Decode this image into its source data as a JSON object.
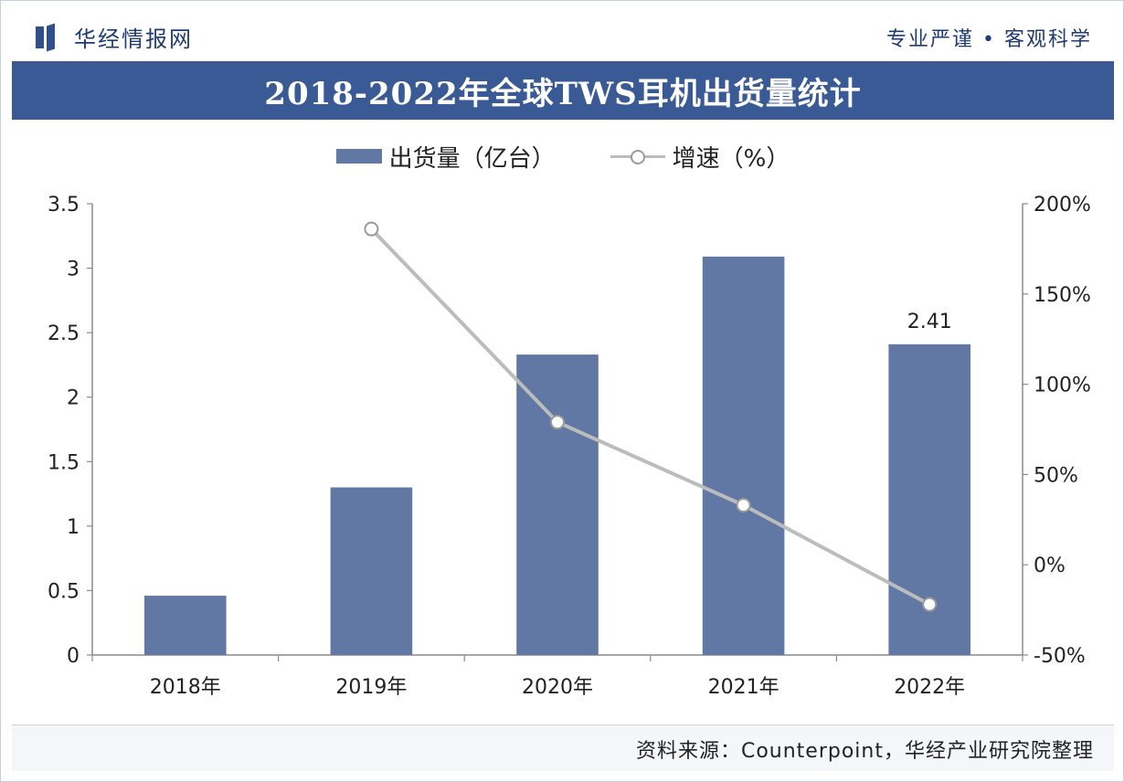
{
  "header": {
    "brand": "华经情报网",
    "slogan": "专业严谨 • 客观科学"
  },
  "chart_data": {
    "type": "bar",
    "title": "2018-2022年全球TWS耳机出货量统计",
    "categories": [
      "2018年",
      "2019年",
      "2020年",
      "2021年",
      "2022年"
    ],
    "series": [
      {
        "name": "出货量（亿台）",
        "type": "bar",
        "axis": "left",
        "values": [
          0.46,
          1.3,
          2.33,
          3.09,
          2.41
        ],
        "color": "#6078a3"
      },
      {
        "name": "增速（%）",
        "type": "line",
        "axis": "right",
        "values": [
          null,
          186,
          79,
          33,
          -22
        ],
        "color": "#bcbcbc"
      }
    ],
    "data_labels": [
      {
        "category": "2022年",
        "text": "2.41"
      }
    ],
    "y_left": {
      "min": 0,
      "max": 3.5,
      "ticks": [
        "0",
        "0.5",
        "1",
        "1.5",
        "2",
        "2.5",
        "3",
        "3.5"
      ]
    },
    "y_right": {
      "min": -50,
      "max": 200,
      "ticks": [
        "-50%",
        "0%",
        "50%",
        "100%",
        "150%",
        "200%"
      ]
    },
    "grid": false,
    "legend_position": "top"
  },
  "footer": {
    "source": "资料来源：Counterpoint，华经产业研究院整理"
  }
}
